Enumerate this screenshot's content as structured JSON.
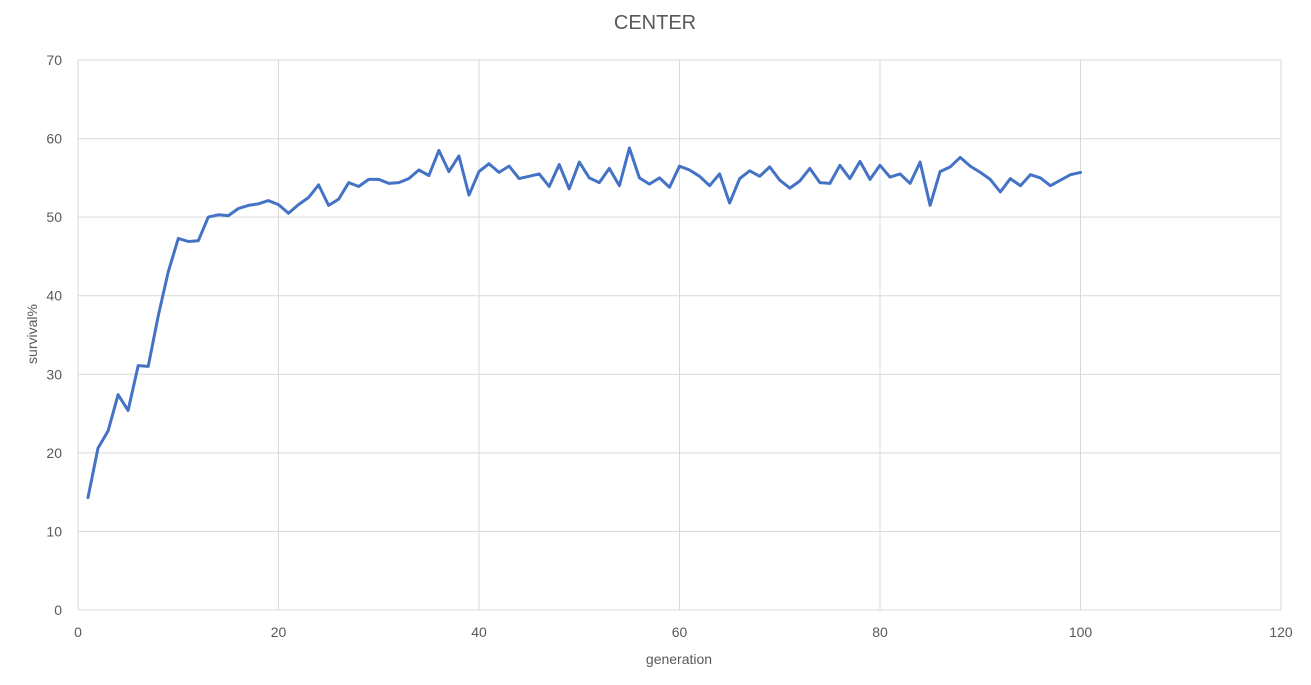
{
  "chart_data": {
    "type": "line",
    "title": "CENTER",
    "xlabel": "generation",
    "ylabel": "survival%",
    "xlim": [
      0,
      120
    ],
    "ylim": [
      0,
      70
    ],
    "xticks": [
      0,
      20,
      40,
      60,
      80,
      100,
      120
    ],
    "yticks": [
      0,
      10,
      20,
      30,
      40,
      50,
      60,
      70
    ],
    "grid": true,
    "legend": "none",
    "series_color": "#4472c4",
    "series": [
      {
        "x": [
          1,
          2,
          3,
          4,
          5,
          6,
          7,
          8,
          9,
          10,
          11,
          12,
          13,
          14,
          15,
          16,
          17,
          18,
          19,
          20,
          21,
          22,
          23,
          24,
          25,
          26,
          27,
          28,
          29,
          30,
          31,
          32,
          33,
          34,
          35,
          36,
          37,
          38,
          39,
          40,
          41,
          42,
          43,
          44,
          45,
          46,
          47,
          48,
          49,
          50,
          51,
          52,
          53,
          54,
          55,
          56,
          57,
          58,
          59,
          60,
          61,
          62,
          63,
          64,
          65,
          66,
          67,
          68,
          69,
          70,
          71,
          72,
          73,
          74,
          75,
          76,
          77,
          78,
          79,
          80,
          81,
          82,
          83,
          84,
          85,
          86,
          87,
          88,
          89,
          90,
          91,
          92,
          93,
          94,
          95,
          96,
          97,
          98,
          99,
          100
        ],
        "values": [
          14.3,
          20.6,
          22.8,
          27.4,
          25.4,
          31.1,
          31.0,
          37.4,
          43.0,
          47.3,
          46.9,
          47.0,
          50.0,
          50.3,
          50.2,
          51.1,
          51.5,
          51.7,
          52.1,
          51.6,
          50.5,
          51.6,
          52.5,
          54.1,
          51.5,
          52.3,
          54.4,
          53.9,
          54.8,
          54.8,
          54.3,
          54.4,
          54.9,
          56.0,
          55.3,
          58.5,
          55.8,
          57.8,
          52.8,
          55.8,
          56.8,
          55.7,
          56.5,
          54.9,
          55.2,
          55.5,
          53.9,
          56.7,
          53.6,
          57.0,
          55.0,
          54.4,
          56.2,
          54.0,
          58.8,
          55.0,
          54.2,
          55.0,
          53.8,
          56.5,
          56.0,
          55.2,
          54.0,
          55.5,
          51.8,
          54.9,
          55.9,
          55.2,
          56.4,
          54.7,
          53.7,
          54.6,
          56.2,
          54.4,
          54.3,
          56.6,
          54.9,
          57.1,
          54.8,
          56.6,
          55.1,
          55.5,
          54.3,
          57.0,
          51.5,
          55.8,
          56.4,
          57.6,
          56.5,
          55.7,
          54.8,
          53.2,
          54.9,
          54.0,
          55.4,
          55.0,
          54.0,
          54.7,
          55.4,
          55.7
        ]
      }
    ]
  }
}
